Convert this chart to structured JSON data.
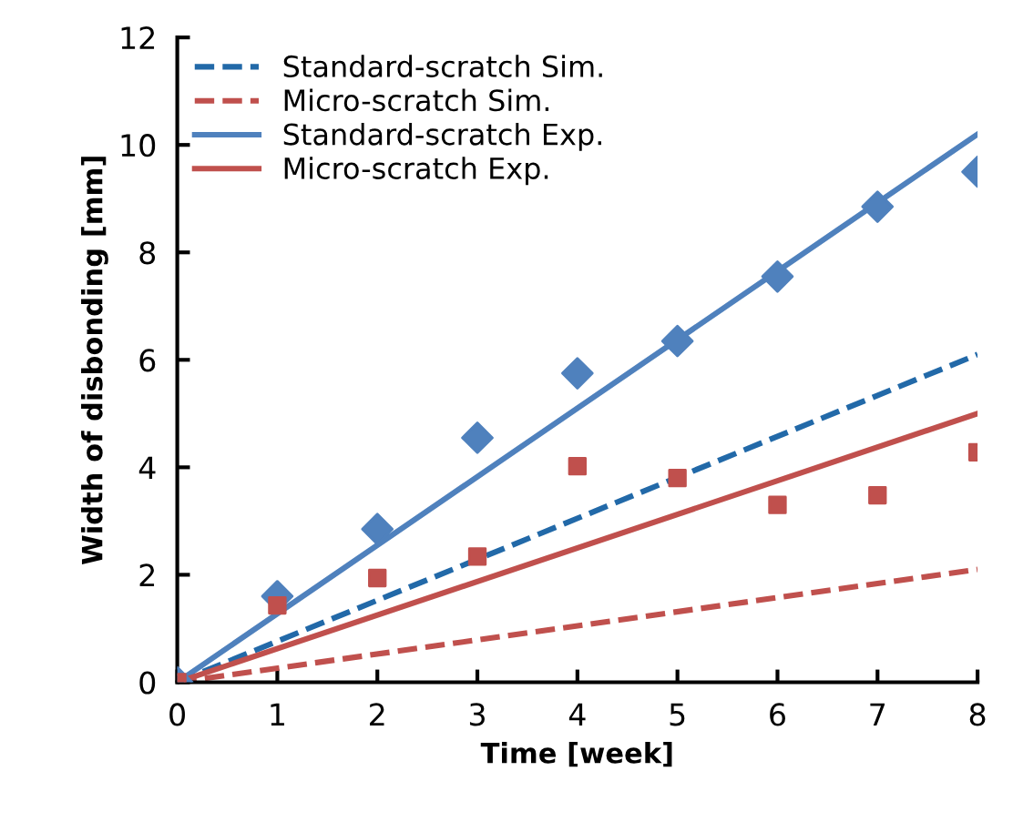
{
  "chart_data": {
    "type": "line",
    "xlabel": "Time [week]",
    "ylabel": "Width of disbonding [mm]",
    "xlim": [
      0,
      8
    ],
    "xticks": [
      0,
      1,
      2,
      3,
      4,
      5,
      6,
      7,
      8
    ],
    "ylim": [
      0,
      12
    ],
    "yticks": [
      0,
      2,
      4,
      6,
      8,
      10,
      12
    ],
    "grid": false,
    "legend": "top left",
    "marker": "none",
    "series": [
      {
        "name": "Standard-scratch Sim.",
        "color": "#2269a8",
        "x": [
          0,
          8
        ],
        "values": [
          0,
          6.1
        ],
        "line_style": "dashed"
      },
      {
        "name": "Micro-scratch Sim.",
        "color": "#c0504d",
        "x": [
          0,
          8
        ],
        "values": [
          0,
          2.1
        ],
        "line_style": "dashed"
      },
      {
        "name": "Standard-scratch Exp.",
        "color": "#4f81bd",
        "x": [
          0,
          8
        ],
        "values": [
          0,
          10.2
        ],
        "line_style": "solid"
      },
      {
        "name": "Micro-scratch Exp.",
        "color": "#c0504d",
        "x": [
          0,
          8
        ],
        "values": [
          0,
          5.0
        ],
        "line_style": "solid"
      },
      {
        "type": "scatter",
        "color": "#4f81bd",
        "marker": "diamond",
        "x": [
          0,
          1,
          2,
          3,
          4,
          5,
          6,
          7,
          8
        ],
        "values": [
          0,
          1.6,
          2.85,
          4.55,
          5.75,
          6.35,
          7.55,
          8.85,
          9.5
        ]
      },
      {
        "type": "scatter",
        "color": "#c0504d",
        "marker": "square",
        "x": [
          0,
          1,
          2,
          3,
          4,
          5,
          6,
          7,
          8
        ],
        "values": [
          0,
          1.43,
          1.94,
          2.34,
          4.02,
          3.8,
          3.3,
          3.48,
          4.28
        ]
      }
    ]
  }
}
